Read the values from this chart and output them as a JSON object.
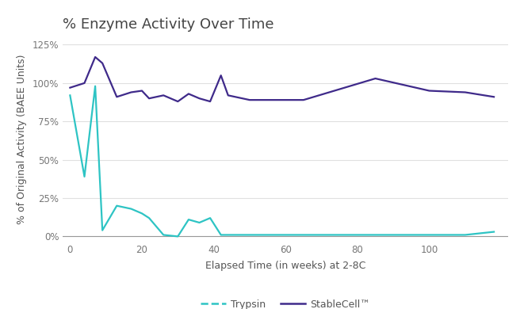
{
  "title": "% Enzyme Activity Over Time",
  "xlabel": "Elapsed Time (in weeks) at 2-8C",
  "ylabel": "% of Original Activity (BAEE Units)",
  "trypsin_x": [
    0,
    4,
    7,
    9,
    13,
    17,
    20,
    22,
    26,
    30,
    33,
    36,
    39,
    42,
    44,
    50,
    55,
    60,
    65,
    85,
    100,
    110,
    118
  ],
  "trypsin_y": [
    0.92,
    0.39,
    0.98,
    0.04,
    0.2,
    0.18,
    0.15,
    0.12,
    0.01,
    0.0,
    0.11,
    0.09,
    0.12,
    0.01,
    0.01,
    0.01,
    0.01,
    0.01,
    0.01,
    0.01,
    0.01,
    0.01,
    0.03
  ],
  "stablecell_x": [
    0,
    4,
    7,
    9,
    13,
    17,
    20,
    22,
    26,
    30,
    33,
    36,
    39,
    42,
    44,
    50,
    55,
    60,
    65,
    85,
    100,
    110,
    118
  ],
  "stablecell_y": [
    0.97,
    1.0,
    1.17,
    1.13,
    0.91,
    0.94,
    0.95,
    0.9,
    0.92,
    0.88,
    0.93,
    0.9,
    0.88,
    1.05,
    0.92,
    0.89,
    0.89,
    0.89,
    0.89,
    1.03,
    0.95,
    0.94,
    0.91
  ],
  "trypsin_color": "#2EC4C4",
  "stablecell_color": "#3F2A8A",
  "background_color": "#ffffff",
  "grid_color": "#e0e0e0",
  "ylim": [
    -0.03,
    1.3
  ],
  "xlim": [
    -2,
    122
  ],
  "yticks": [
    0,
    0.25,
    0.5,
    0.75,
    1.0,
    1.25
  ],
  "ytick_labels": [
    "0%",
    "25%",
    "50%",
    "75%",
    "100%",
    "125%"
  ],
  "xticks": [
    0,
    20,
    40,
    60,
    80,
    100
  ],
  "legend_trypsin": "Trypsin",
  "legend_stablecell": "StableCell™",
  "title_fontsize": 13,
  "axis_label_fontsize": 9,
  "tick_fontsize": 8.5,
  "legend_fontsize": 9
}
